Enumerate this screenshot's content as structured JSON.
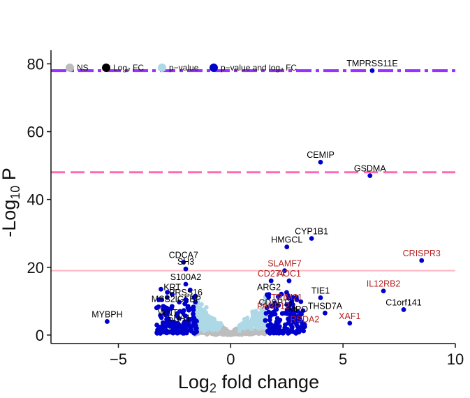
{
  "chart_data": {
    "type": "scatter",
    "title": "",
    "xlabel": "Log2 fold change",
    "ylabel": "-Log10 P",
    "xlim": [
      -8,
      10
    ],
    "ylim": [
      -2.5,
      84
    ],
    "xticks": [
      -5,
      0,
      5,
      10
    ],
    "yticks": [
      0,
      20,
      40,
      60,
      80
    ],
    "grid": false,
    "legend_position": "top",
    "legend": [
      {
        "name": "NS",
        "color": "#bdbdbd"
      },
      {
        "name": "Log₂ FC",
        "color": "#000000"
      },
      {
        "name": "p−value",
        "color": "#add8e6"
      },
      {
        "name": "p−value and log₂ FC",
        "color": "#0000cd"
      }
    ],
    "threshold_lines": [
      {
        "y": 78,
        "color": "#9b30ff",
        "style": "dashdot"
      },
      {
        "y": 48,
        "color": "#ff69b4",
        "style": "dashed"
      },
      {
        "y": 19,
        "color": "#ffb6c1",
        "style": "solid"
      }
    ],
    "labeled_points": [
      {
        "label": "TMPRSS11E",
        "x": 6.3,
        "y": 78,
        "color": "#000000"
      },
      {
        "label": "CEMIP",
        "x": 4.0,
        "y": 51,
        "color": "#000000"
      },
      {
        "label": "GSDMA",
        "x": 6.2,
        "y": 47,
        "color": "#000000"
      },
      {
        "label": "CYP1B1",
        "x": 3.6,
        "y": 28.5,
        "color": "#000000"
      },
      {
        "label": "HMGCL",
        "x": 2.5,
        "y": 26,
        "color": "#000000"
      },
      {
        "label": "CRISPR3",
        "x": 8.5,
        "y": 22,
        "color": "#b22222"
      },
      {
        "label": "SLAMF7",
        "x": 2.4,
        "y": 19,
        "color": "#b22222"
      },
      {
        "label": "CD274",
        "x": 1.8,
        "y": 16,
        "color": "#b22222"
      },
      {
        "label": "AOC1",
        "x": 2.6,
        "y": 16,
        "color": "#b22222"
      },
      {
        "label": "IL12RB2",
        "x": 6.8,
        "y": 13,
        "color": "#b22222"
      },
      {
        "label": "ARG2",
        "x": 1.7,
        "y": 12,
        "color": "#000000"
      },
      {
        "label": "TIE1",
        "x": 4.0,
        "y": 11,
        "color": "#000000"
      },
      {
        "label": "TRIM21",
        "x": 2.5,
        "y": 9,
        "color": "#b22222"
      },
      {
        "label": "CDSP13",
        "x": 2.0,
        "y": 7.5,
        "color": "#000000"
      },
      {
        "label": "PARP12",
        "x": 1.9,
        "y": 6.5,
        "color": "#b22222"
      },
      {
        "label": "MPO",
        "x": 3.0,
        "y": 5.5,
        "color": "#000000"
      },
      {
        "label": "THSD7A",
        "x": 4.2,
        "y": 6.5,
        "color": "#000000"
      },
      {
        "label": "C1orf141",
        "x": 7.7,
        "y": 7.5,
        "color": "#000000"
      },
      {
        "label": "XAF1",
        "x": 5.3,
        "y": 3.5,
        "color": "#b22222"
      },
      {
        "label": "RSDA2",
        "x": 3.3,
        "y": 2.5,
        "color": "#b22222"
      },
      {
        "label": "CDCA7",
        "x": -2.1,
        "y": 21.5,
        "color": "#000000"
      },
      {
        "label": "SH3",
        "x": -2.0,
        "y": 19.5,
        "color": "#000000"
      },
      {
        "label": "S100A2",
        "x": -2.0,
        "y": 15,
        "color": "#000000"
      },
      {
        "label": "KRT",
        "x": -2.6,
        "y": 12,
        "color": "#000000"
      },
      {
        "label": "PRSS16",
        "x": -2.0,
        "y": 10.5,
        "color": "#000000"
      },
      {
        "label": "MSS2",
        "x": -3.0,
        "y": 8.5,
        "color": "#000000"
      },
      {
        "label": "IGFBP",
        "x": -1.9,
        "y": 8.5,
        "color": "#000000"
      },
      {
        "label": "MYBPH",
        "x": -5.5,
        "y": 4,
        "color": "#000000"
      },
      {
        "label": "WNT",
        "x": -2.8,
        "y": 4.5,
        "color": "#000000"
      },
      {
        "label": "SHA1",
        "x": -2.3,
        "y": 3,
        "color": "#000000"
      }
    ]
  }
}
